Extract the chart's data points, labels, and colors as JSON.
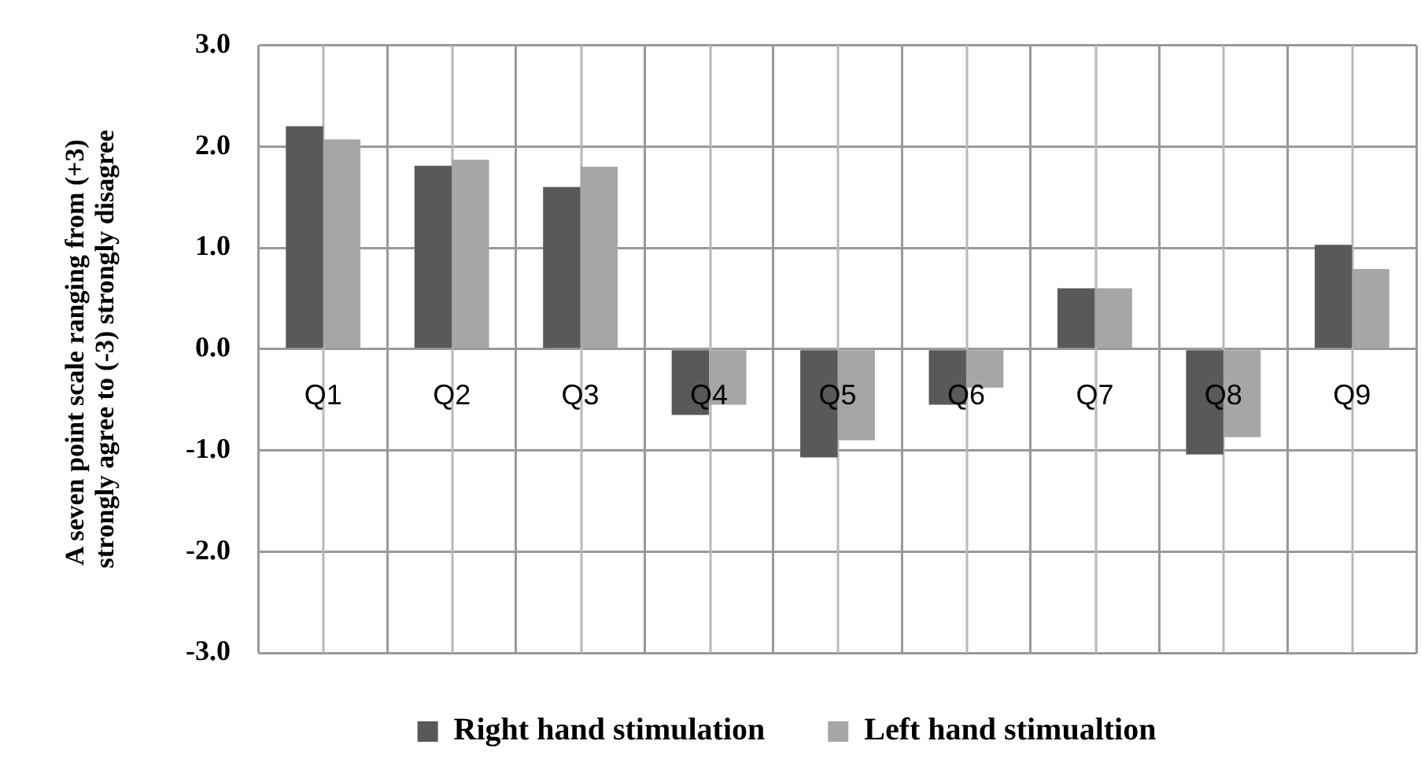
{
  "chart_data": {
    "type": "bar",
    "ylabel": "A seven point scale ranging from (+3)  strongly agree to (-3) strongly disagree",
    "categories": [
      "Q1",
      "Q2",
      "Q3",
      "Q4",
      "Q5",
      "Q6",
      "Q7",
      "Q8",
      "Q9"
    ],
    "series": [
      {
        "name": "Right hand stimulation",
        "color": "#595959",
        "values": [
          2.2,
          1.81,
          1.6,
          -0.65,
          -1.07,
          -0.55,
          0.6,
          -1.04,
          1.03
        ]
      },
      {
        "name": "Left hand stimualtion",
        "color": "#a6a6a6",
        "values": [
          2.07,
          1.87,
          1.8,
          -0.55,
          -0.9,
          -0.38,
          0.6,
          -0.87,
          0.79
        ]
      }
    ],
    "ylim": [
      -3,
      3
    ],
    "yticks": [
      {
        "value": -3,
        "label": "-3.0"
      },
      {
        "value": -2,
        "label": "-2.0"
      },
      {
        "value": -1,
        "label": "-1.0"
      },
      {
        "value": 0,
        "label": "0.0"
      },
      {
        "value": 1,
        "label": "1.0"
      },
      {
        "value": 2,
        "label": "2.0"
      },
      {
        "value": 3,
        "label": "3.0"
      }
    ],
    "grid": true,
    "legend": "bottom"
  }
}
